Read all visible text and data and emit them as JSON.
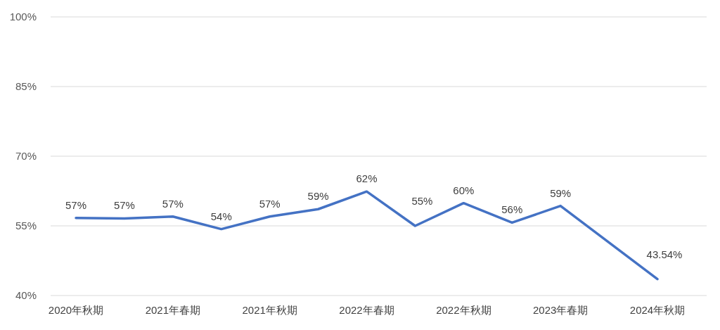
{
  "chart_data": {
    "type": "line",
    "categories": [
      "2020年秋期",
      null,
      "2021年春期",
      null,
      "2021年秋期",
      null,
      "2022年春期",
      null,
      "2022年秋期",
      null,
      "2023年春期",
      null,
      "2024年秋期"
    ],
    "series": [
      {
        "color": "#4472c4",
        "values": [
          56.7,
          56.6,
          57.0,
          54.3,
          57.0,
          58.6,
          62.4,
          55.0,
          59.9,
          55.7,
          59.3,
          null,
          43.54
        ],
        "value_labels": [
          "57%",
          "57%",
          "57%",
          "54%",
          "57%",
          "59%",
          "62%",
          "55%",
          "60%",
          "56%",
          "59%",
          null,
          "43.54%"
        ]
      }
    ],
    "ylim": [
      40,
      100
    ],
    "yticks": [
      {
        "value": 40,
        "label": "40%"
      },
      {
        "value": 55,
        "label": "55%"
      },
      {
        "value": 70,
        "label": "70%"
      },
      {
        "value": 85,
        "label": "85%"
      },
      {
        "value": 100,
        "label": "100%"
      }
    ],
    "grid": "y",
    "marker": "none",
    "line_style": "solid"
  }
}
